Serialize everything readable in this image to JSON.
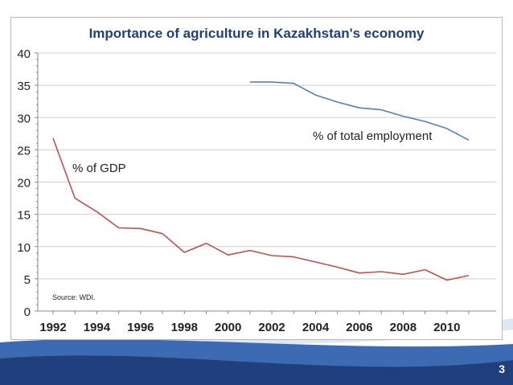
{
  "slide": {
    "number": "3",
    "colors": {
      "footer_dark": "#1f3f7d",
      "footer_light": "#3c6bb3",
      "frame": "#b9b9b9"
    }
  },
  "chart_data": {
    "type": "line",
    "title": "Importance of agriculture in Kazakhstan's economy",
    "xlabel": "",
    "ylabel": "",
    "xlim": [
      1992,
      2011
    ],
    "ylim": [
      0,
      40
    ],
    "x_ticks": [
      "1992",
      "1994",
      "1996",
      "1998",
      "2000",
      "2002",
      "2004",
      "2006",
      "2008",
      "2010"
    ],
    "y_ticks": [
      "0",
      "5",
      "10",
      "15",
      "20",
      "25",
      "30",
      "35",
      "40"
    ],
    "grid": "horizontal",
    "source_note": "Source: WDI.",
    "series": [
      {
        "name": "% of GDP",
        "color": "#c0504d",
        "x": [
          1992,
          1993,
          1994,
          1995,
          1996,
          1997,
          1998,
          1999,
          2000,
          2001,
          2002,
          2003,
          2004,
          2005,
          2006,
          2007,
          2008,
          2009,
          2010,
          2011
        ],
        "y": [
          26.8,
          17.5,
          15.4,
          12.9,
          12.8,
          12.0,
          9.1,
          10.5,
          8.7,
          9.4,
          8.6,
          8.4,
          7.6,
          6.8,
          5.9,
          6.1,
          5.7,
          6.4,
          4.8,
          5.5
        ]
      },
      {
        "name": "% of total employment",
        "color": "#4f81bd",
        "x": [
          2001,
          2002,
          2003,
          2004,
          2005,
          2006,
          2007,
          2008,
          2009,
          2010,
          2011
        ],
        "y": [
          35.5,
          35.5,
          35.3,
          33.5,
          32.4,
          31.5,
          31.2,
          30.2,
          29.4,
          28.3,
          26.5
        ]
      }
    ]
  }
}
